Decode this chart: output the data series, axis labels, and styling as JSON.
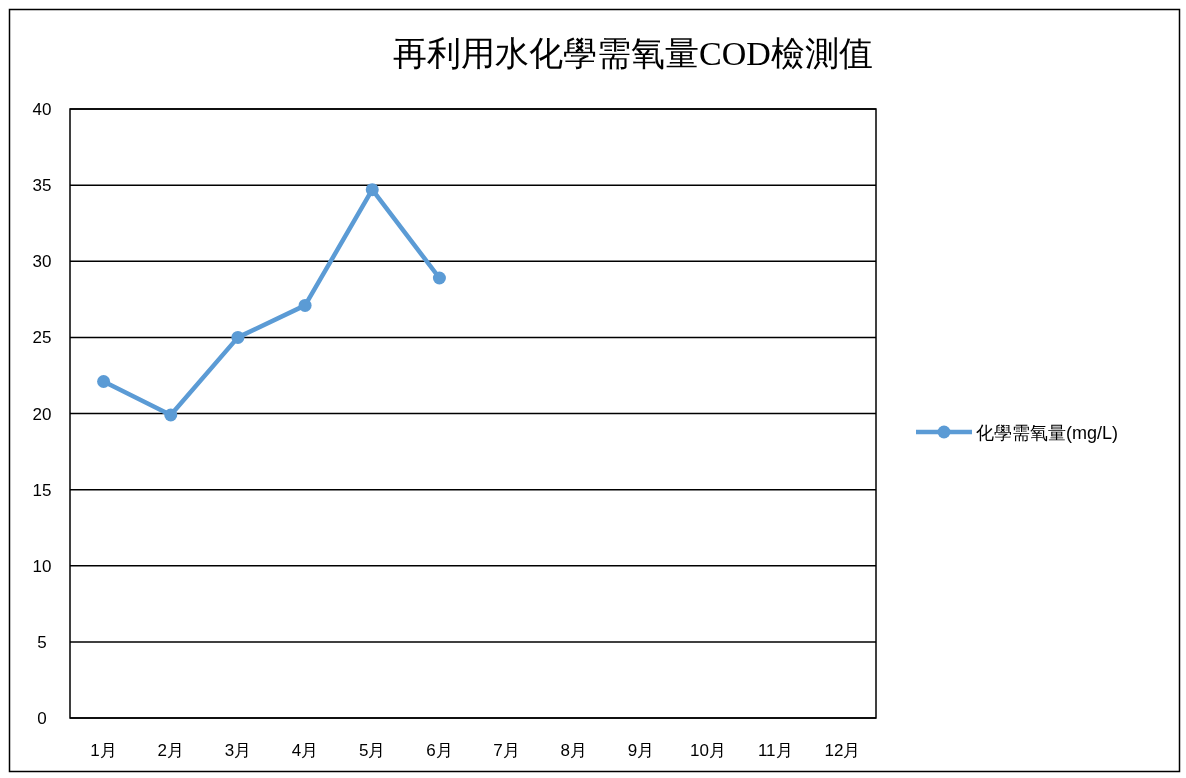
{
  "chart_data": {
    "type": "line",
    "title": "再利用水化學需氧量COD檢測值",
    "categories": [
      "1月",
      "2月",
      "3月",
      "4月",
      "5月",
      "6月",
      "7月",
      "8月",
      "9月",
      "10月",
      "11月",
      "12月"
    ],
    "series": [
      {
        "name": "化學需氧量(mg/L)",
        "color": "#5b9bd5",
        "values": [
          22.1,
          19.9,
          25.0,
          27.1,
          34.7,
          28.9,
          null,
          null,
          null,
          null,
          null,
          null
        ]
      }
    ],
    "ylim": [
      0,
      40
    ],
    "yticks": [
      0,
      5,
      10,
      15,
      20,
      25,
      30,
      35,
      40
    ],
    "grid": "y",
    "legend": "right",
    "marker": "circle"
  }
}
